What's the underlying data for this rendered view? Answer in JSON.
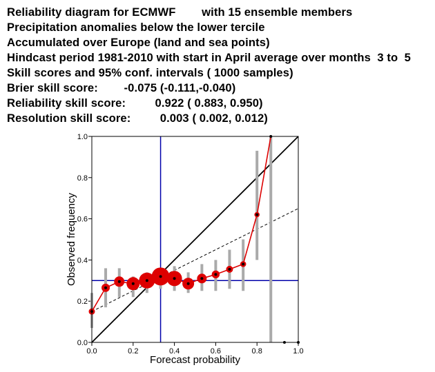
{
  "header": {
    "lines": [
      "Reliability diagram for ECMWF        with 15 ensemble members",
      "Precipitation anomalies below the lower tercile",
      "Accumulated over Europe (land and sea points)",
      "Hindcast period 1981-2010 with start in April average over months  3 to  5",
      "Skill scores and 95% conf. intervals ( 1000 samples)",
      "Brier skill score:        -0.075 (-0.111,-0.040)",
      "Reliability skill score:         0.922 ( 0.883, 0.950)",
      "Resolution skill score:         0.003 ( 0.002, 0.012)"
    ]
  },
  "chart_data": {
    "type": "scatter",
    "xlabel": "Forecast probability",
    "ylabel": "Observed frequency",
    "xlim": [
      0,
      1
    ],
    "ylim": [
      0,
      1
    ],
    "xticks": [
      "0.0",
      "0.2",
      "0.4",
      "0.6",
      "0.8",
      "1.0"
    ],
    "yticks": [
      "0.0",
      "0.2",
      "0.4",
      "0.6",
      "0.8",
      "1.0"
    ],
    "climatology": 0.3,
    "climatology_forecast": 0.333,
    "no_skill_line": {
      "x0": 0,
      "y0": 0.15,
      "x1": 1,
      "y1": 0.65
    },
    "colors": {
      "reliability": "#dd0000",
      "diagonal": "#000000",
      "climatology": "#0000aa",
      "no_skill": "#000000",
      "intervals": "#aaaaaa"
    },
    "series": [
      {
        "x": [
          0.0,
          0.067,
          0.133,
          0.2,
          0.267,
          0.333,
          0.4,
          0.467,
          0.533,
          0.6,
          0.667,
          0.733,
          0.8,
          0.867,
          0.933,
          1.0
        ],
        "y": [
          0.15,
          0.265,
          0.295,
          0.285,
          0.3,
          0.32,
          0.31,
          0.285,
          0.31,
          0.33,
          0.355,
          0.38,
          0.62,
          1.0,
          0.0,
          0.0
        ],
        "relative_size": [
          0.15,
          0.3,
          0.45,
          0.65,
          0.85,
          1.0,
          0.8,
          0.55,
          0.4,
          0.27,
          0.2,
          0.13,
          0.08,
          0.03,
          0.0,
          0.0
        ],
        "ci_low": [
          0.07,
          0.17,
          0.22,
          0.22,
          0.24,
          0.26,
          0.25,
          0.24,
          0.25,
          0.25,
          0.26,
          0.25,
          0.4,
          0.0,
          null,
          null
        ],
        "ci_high": [
          0.24,
          0.36,
          0.36,
          0.32,
          0.34,
          0.36,
          0.37,
          0.34,
          0.38,
          0.4,
          0.45,
          0.5,
          0.93,
          1.0,
          null,
          null
        ]
      }
    ]
  }
}
